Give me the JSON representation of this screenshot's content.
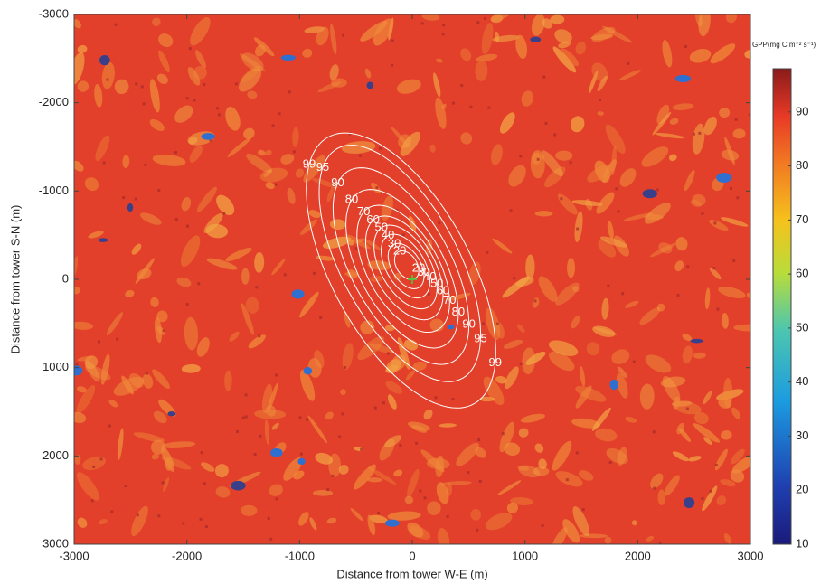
{
  "chart_data": {
    "type": "footprint-contour",
    "xlabel": "Distance from tower W-E (m)",
    "ylabel": "Distance from tower S-N (m)",
    "xlim": [
      -3000,
      3000
    ],
    "ylim": [
      -3000,
      3000
    ],
    "xticks": [
      -3000,
      -2000,
      -1000,
      0,
      1000,
      2000,
      3000
    ],
    "yticks": [
      -3000,
      -2000,
      -1000,
      0,
      1000,
      2000,
      3000
    ],
    "colorbar": {
      "label": "GPP(mg C m⁻² s⁻¹)",
      "lim": [
        10,
        98
      ],
      "ticks": [
        10,
        20,
        30,
        40,
        50,
        60,
        70,
        80,
        90
      ]
    },
    "contour_color": "#ffffff",
    "contours": [
      {
        "level": 99,
        "center": [
          -100,
          -100
        ],
        "semi_axes": [
          1650,
          640
        ],
        "angle": 69
      },
      {
        "level": 95,
        "center": [
          -110,
          -180
        ],
        "semi_axes": [
          1420,
          540
        ],
        "angle": 69
      },
      {
        "level": 90,
        "center": [
          -100,
          -150
        ],
        "semi_axes": [
          1180,
          460
        ],
        "angle": 69
      },
      {
        "level": 80,
        "center": [
          -90,
          -120
        ],
        "semi_axes": [
          950,
          390
        ],
        "angle": 69
      },
      {
        "level": 70,
        "center": [
          -80,
          -120
        ],
        "semi_axes": [
          760,
          330
        ],
        "angle": 69
      },
      {
        "level": 60,
        "center": [
          -70,
          -130
        ],
        "semi_axes": [
          620,
          280
        ],
        "angle": 69
      },
      {
        "level": 50,
        "center": [
          -60,
          -140
        ],
        "semi_axes": [
          500,
          230
        ],
        "angle": 69
      },
      {
        "level": 40,
        "center": [
          -60,
          -150
        ],
        "semi_axes": [
          380,
          180
        ],
        "angle": 69
      },
      {
        "level": 30,
        "center": [
          -55,
          -150
        ],
        "semi_axes": [
          270,
          135
        ],
        "angle": 69
      },
      {
        "level": 20,
        "center": [
          -50,
          -160
        ],
        "semi_axes": [
          170,
          95
        ],
        "angle": 69
      }
    ]
  }
}
